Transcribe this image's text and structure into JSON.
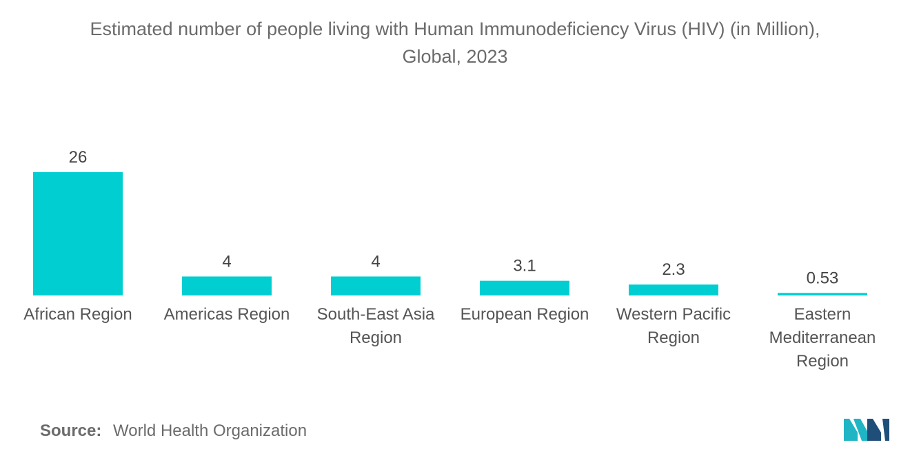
{
  "chart_data": {
    "type": "bar",
    "title": "Estimated number of people living with Human Immunodeficiency Virus (HIV) (in Million),",
    "subtitle": "Global, 2023",
    "categories": [
      [
        "African Region"
      ],
      [
        "Americas Region"
      ],
      [
        "South-East Asia",
        "Region"
      ],
      [
        "European Region"
      ],
      [
        "Western Pacific",
        "Region"
      ],
      [
        "Eastern",
        "Mediterranean",
        "Region"
      ]
    ],
    "values": [
      26,
      4,
      4,
      3.1,
      2.3,
      0.53
    ],
    "value_labels": [
      "26",
      "4",
      "4",
      "3.1",
      "2.3",
      "0.53"
    ],
    "xlabel": "",
    "ylabel": "",
    "ylim": [
      0,
      26
    ],
    "grid": false,
    "bar_color": "#00ced1"
  },
  "footer": {
    "source_label": "Source:",
    "source_text": "World Health Organization"
  },
  "colors": {
    "logo_dark": "#1f4e79",
    "logo_light": "#1fb5c4"
  }
}
